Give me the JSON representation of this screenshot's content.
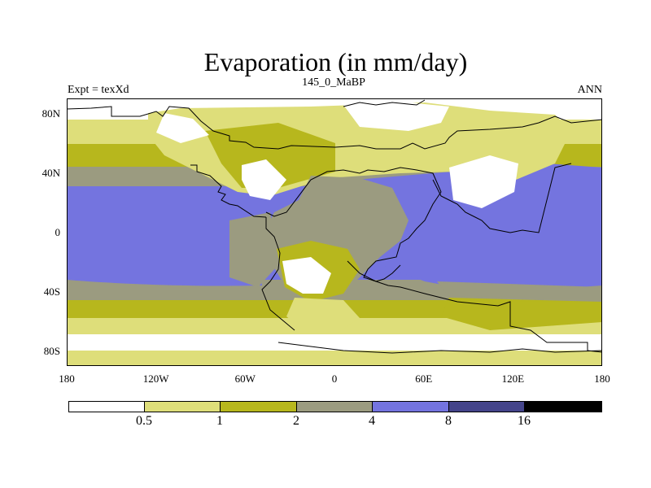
{
  "title": "Evaporation (in mm/day)",
  "left_string": "Expt = texXd",
  "center_string": "145_0_MaBP",
  "right_string": "ANN",
  "x_ticks": [
    "180",
    "120W",
    "60W",
    "0",
    "60E",
    "120E",
    "180"
  ],
  "y_ticks": [
    "80N",
    "40N",
    "0",
    "40S",
    "80S"
  ],
  "colorbar": {
    "colors": [
      "#ffffff",
      "#dede7a",
      "#b7b71d",
      "#9b9b80",
      "#7474df",
      "#44448a",
      "#000000"
    ],
    "labels": [
      "0.5",
      "1",
      "2",
      "4",
      "8",
      "16"
    ]
  },
  "colors": {
    "white": "#ffffff",
    "lt_yellow": "#dede7a",
    "olive": "#b7b71d",
    "grey": "#9b9b80",
    "blue": "#7474df",
    "coast": "#000000"
  }
}
